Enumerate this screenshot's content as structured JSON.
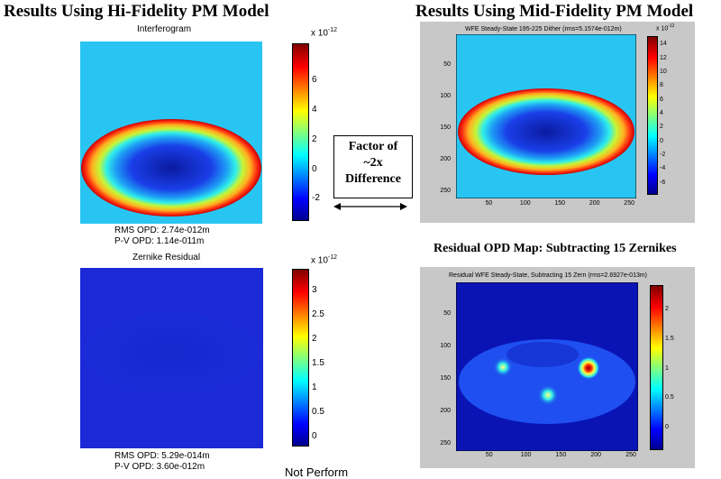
{
  "headings": {
    "hi_fidelity": "Results Using Hi-Fidelity PM Model",
    "mid_fidelity": "Results Using Mid-Fidelity PM Model",
    "residual_opd": "Residual OPD Map: Subtracting 15 Zernikes"
  },
  "factor_box": {
    "line1": "Factor of",
    "line2": "~2x",
    "line3": "Difference"
  },
  "footer_text": "Not Perform",
  "colors": {
    "background_field": "#29c5f2",
    "dark_field": "#1b2ad6",
    "figure_bg": "#c8c8c8"
  },
  "chart_data": [
    {
      "type": "heatmap",
      "title": "Interferogram",
      "colorbar_exponent": "x 10",
      "colorbar_power": "-12",
      "colorbar_range": [
        -3.5,
        8.5
      ],
      "colorbar_ticks": [
        "6",
        "4",
        "2",
        "0",
        "-2"
      ],
      "colorbar_tick_values": [
        6,
        4,
        2,
        0,
        -2
      ],
      "stats": [
        "RMS OPD: 2.74e-012m",
        "P-V OPD: 1.14e-011m"
      ]
    },
    {
      "type": "heatmap",
      "title": "Zernike Residual",
      "colorbar_exponent": "x 10",
      "colorbar_power": "-12",
      "colorbar_range": [
        -0.2,
        3.45
      ],
      "colorbar_ticks": [
        "3",
        "2.5",
        "2",
        "1.5",
        "1",
        "0.5",
        "0"
      ],
      "colorbar_tick_values": [
        3,
        2.5,
        2,
        1.5,
        1,
        0.5,
        0
      ],
      "stats": [
        "RMS OPD: 5.29e-014m",
        "P-V OPD: 3.60e-012m"
      ]
    },
    {
      "type": "heatmap",
      "title": "WFE Steady-State 195-225 Dither (rms=5.1574e-012m)",
      "xlim": [
        0,
        260
      ],
      "ylim": [
        0,
        260
      ],
      "xticks": [
        "50",
        "100",
        "150",
        "200",
        "250"
      ],
      "yticks": [
        "50",
        "100",
        "150",
        "200",
        "250"
      ],
      "colorbar_exponent": "x 10",
      "colorbar_power": "-12",
      "colorbar_range": [
        -7.5,
        15.5
      ],
      "colorbar_ticks": [
        "14",
        "12",
        "10",
        "8",
        "6",
        "4",
        "2",
        "0",
        "-2",
        "-4",
        "-6"
      ],
      "colorbar_tick_values": [
        14,
        12,
        10,
        8,
        6,
        4,
        2,
        0,
        -2,
        -4,
        -6
      ]
    },
    {
      "type": "heatmap",
      "title": "Residual WFE Steady-State, Subtracting 15 Zern (rms=2.6927e-013m)",
      "xlim": [
        0,
        260
      ],
      "ylim": [
        0,
        260
      ],
      "xticks": [
        "50",
        "100",
        "150",
        "200",
        "250"
      ],
      "yticks": [
        "50",
        "100",
        "150",
        "200",
        "250"
      ],
      "colorbar_exponent": "x 10",
      "colorbar_power": "-12",
      "colorbar_range": [
        -0.35,
        2.45
      ],
      "colorbar_ticks": [
        "2",
        "1.5",
        "1",
        "0.5",
        "0"
      ],
      "colorbar_tick_values": [
        2,
        1.5,
        1,
        0.5,
        0
      ]
    }
  ]
}
